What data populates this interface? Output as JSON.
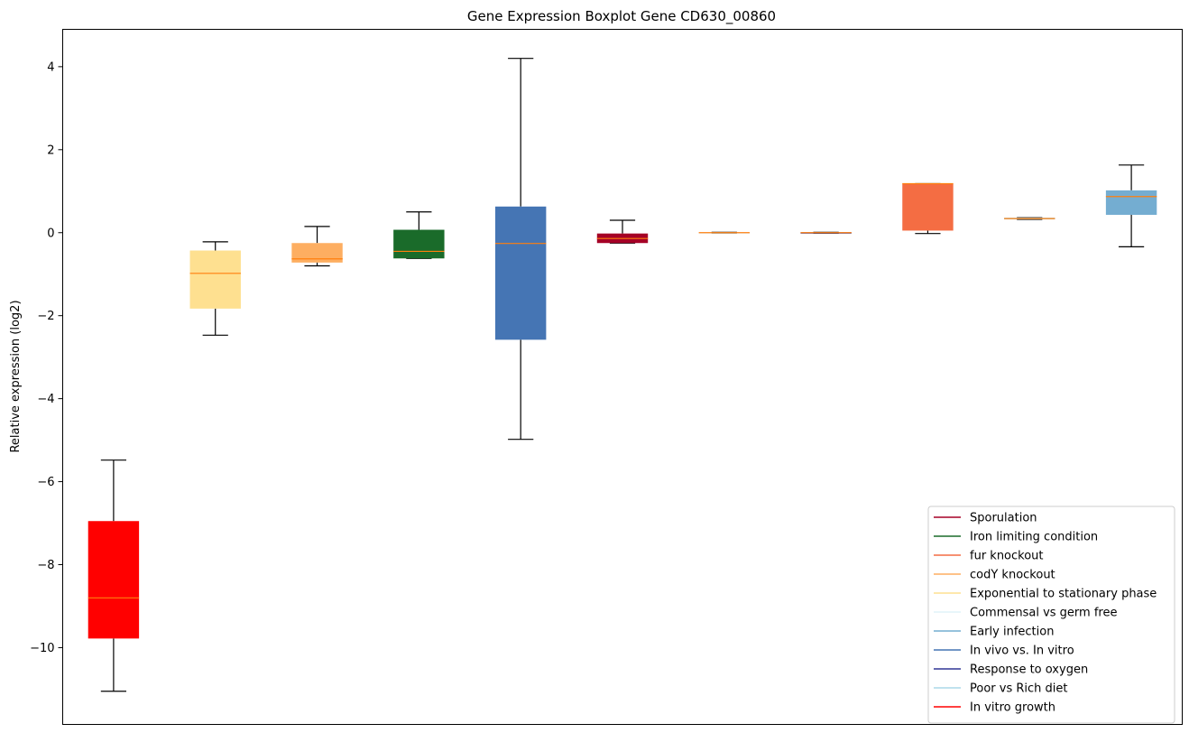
{
  "chart_data": {
    "type": "box",
    "title": "Gene Expression Boxplot Gene CD630_00860",
    "xlabel": "",
    "ylabel": "Relative expression (log2)",
    "ylim": [
      -11.85,
      4.9
    ],
    "yticks": [
      -10,
      -8,
      -6,
      -4,
      -2,
      0,
      2,
      4
    ],
    "ytick_labels": [
      "−10",
      "−8",
      "−6",
      "−4",
      "−2",
      "0",
      "2",
      "4"
    ],
    "grid": false,
    "legend_position": "lower-right",
    "boxes": [
      {
        "whisker_low": -11.05,
        "q1": -9.78,
        "median": -8.8,
        "q3": -6.95,
        "whisker_high": -5.48,
        "color": "#ff0000"
      },
      {
        "whisker_low": -2.47,
        "q1": -1.83,
        "median": -0.98,
        "q3": -0.43,
        "whisker_high": -0.22,
        "color": "#fee090"
      },
      {
        "whisker_low": -0.8,
        "q1": -0.72,
        "median": -0.63,
        "q3": -0.25,
        "whisker_high": 0.15,
        "color": "#fdae61"
      },
      {
        "whisker_low": -0.62,
        "q1": -0.62,
        "median": -0.45,
        "q3": 0.07,
        "whisker_high": 0.5,
        "color": "#1a6b2a"
      },
      {
        "whisker_low": -4.98,
        "q1": -2.58,
        "median": -0.26,
        "q3": 0.63,
        "whisker_high": 4.2,
        "color": "#4575b4"
      },
      {
        "whisker_low": -0.25,
        "q1": -0.25,
        "median": -0.14,
        "q3": -0.02,
        "whisker_high": 0.3,
        "color": "#a50026"
      },
      {
        "whisker_low": -0.01,
        "q1": -0.01,
        "median": 0.0,
        "q3": 0.01,
        "whisker_high": 0.01,
        "color": "#e0f3f8"
      },
      {
        "whisker_low": -0.01,
        "q1": -0.01,
        "median": 0.0,
        "q3": 0.01,
        "whisker_high": 0.01,
        "color": "#313695"
      },
      {
        "whisker_low": -0.02,
        "q1": 0.05,
        "median": 1.18,
        "q3": 1.18,
        "whisker_high": 1.18,
        "color": "#f46d43"
      },
      {
        "whisker_low": 0.32,
        "q1": 0.32,
        "median": 0.34,
        "q3": 0.36,
        "whisker_high": 0.36,
        "color": "#abd9e9"
      },
      {
        "whisker_low": -0.34,
        "q1": 0.43,
        "median": 0.87,
        "q3": 1.02,
        "whisker_high": 1.63,
        "color": "#74add1"
      }
    ],
    "median_color": "#ff7f0e",
    "legend": [
      {
        "label": "Sporulation",
        "color": "#a50026"
      },
      {
        "label": "Iron limiting condition",
        "color": "#1a6b2a"
      },
      {
        "label": "fur knockout",
        "color": "#f46d43"
      },
      {
        "label": "codY knockout",
        "color": "#fdae61"
      },
      {
        "label": "Exponential to stationary phase",
        "color": "#fee090"
      },
      {
        "label": "Commensal vs germ free",
        "color": "#e0f3f8"
      },
      {
        "label": "Early infection",
        "color": "#74add1"
      },
      {
        "label": "In vivo vs. In vitro",
        "color": "#4575b4"
      },
      {
        "label": "Response to oxygen",
        "color": "#313695"
      },
      {
        "label": "Poor vs Rich diet",
        "color": "#abd9e9"
      },
      {
        "label": "In vitro growth",
        "color": "#ff0000"
      }
    ]
  }
}
